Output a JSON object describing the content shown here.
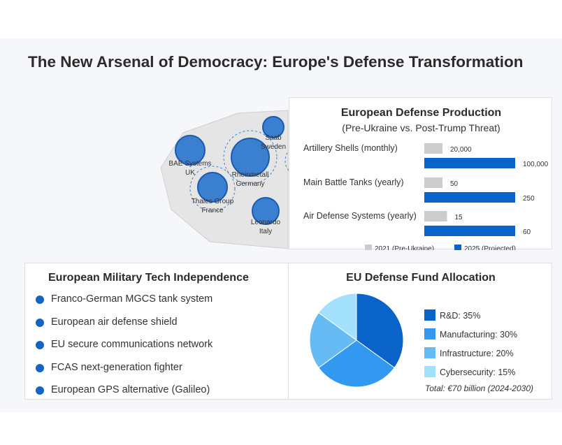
{
  "title": "The New Arsenal of Democracy: Europe's Defense Transformation",
  "colors": {
    "pre_ukraine": "#cccccc",
    "projected": "#0a63c9",
    "map_bubble": "#3a7fd0",
    "map_bubble_stroke": "#1a5bb0",
    "bullet": "#1565c0",
    "pie": [
      "#0a63c9",
      "#3399f0",
      "#66bbf5",
      "#a3e0fb"
    ]
  },
  "map": {
    "companies": [
      {
        "name": "BAE Systems",
        "country": "UK"
      },
      {
        "name": "Rheinmetall",
        "country": "Germany"
      },
      {
        "name": "Saab",
        "country": "Sweden"
      },
      {
        "name": "Thales Group",
        "country": "France"
      },
      {
        "name": "Leonardo",
        "country": "Italy"
      }
    ]
  },
  "production": {
    "title": "European Defense Production",
    "subtitle": "(Pre-Ukraine vs. Post-Trump Threat)",
    "legend": {
      "pre": "2021 (Pre-Ukraine)",
      "proj": "2025 (Projected)"
    }
  },
  "chart_data": [
    {
      "type": "bar",
      "title": "European Defense Production",
      "subtitle": "(Pre-Ukraine vs. Post-Trump Threat)",
      "orientation": "horizontal",
      "legend_position": "bottom",
      "categories": [
        "Artillery Shells (monthly)",
        "Main Battle Tanks (yearly)",
        "Air Defense Systems (yearly)"
      ],
      "series": [
        {
          "name": "2021 (Pre-Ukraine)",
          "values": [
            20000,
            50,
            15
          ],
          "labels": [
            "20,000",
            "50",
            "15"
          ]
        },
        {
          "name": "2025 (Projected)",
          "values": [
            100000,
            250,
            60
          ],
          "labels": [
            "100,000",
            "250",
            "60"
          ]
        }
      ]
    },
    {
      "type": "pie",
      "title": "EU Defense Fund Allocation",
      "legend_position": "right",
      "categories": [
        "R&D",
        "Manufacturing",
        "Infrastructure",
        "Cybersecurity"
      ],
      "values": [
        35,
        30,
        20,
        15
      ],
      "legend_labels": [
        "R&D: 35%",
        "Manufacturing: 30%",
        "Infrastructure: 20%",
        "Cybersecurity: 15%"
      ],
      "note": "Total: €70 billion (2024-2030)"
    }
  ],
  "tech": {
    "title": "European Military Tech Independence",
    "items": [
      "Franco-German MGCS tank system",
      "European air defense shield",
      "EU secure communications network",
      "FCAS next-generation fighter",
      "European GPS alternative (Galileo)"
    ]
  },
  "fund": {
    "title": "EU Defense Fund Allocation"
  }
}
